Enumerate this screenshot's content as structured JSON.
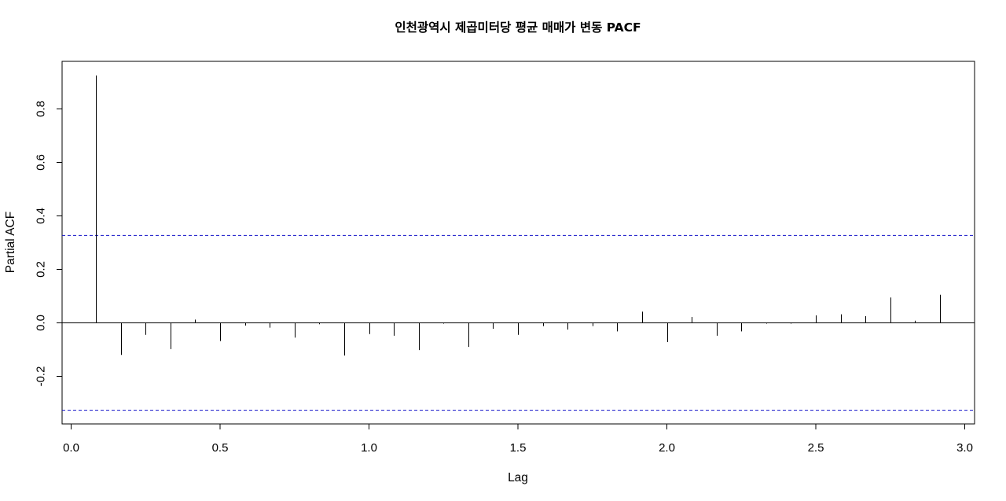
{
  "chart_data": {
    "type": "bar",
    "subtype": "pacf",
    "title": "인천광역시 제곱미터당 평균 매매가 변동 PACF",
    "xlabel": "Lag",
    "ylabel": "Partial ACF",
    "xlim": [
      0.0,
      3.0
    ],
    "ylim": [
      -0.33,
      0.93
    ],
    "x_ticks": [
      "0.0",
      "0.5",
      "1.0",
      "1.5",
      "2.0",
      "2.5",
      "3.0"
    ],
    "y_ticks": [
      "-0.2",
      "0.0",
      "0.2",
      "0.4",
      "0.6",
      "0.8"
    ],
    "confidence_bound": 0.327,
    "confidence_line_color": "#1010c8",
    "x": [
      0.0833,
      0.1667,
      0.25,
      0.3333,
      0.4167,
      0.5,
      0.5833,
      0.6667,
      0.75,
      0.8333,
      0.9167,
      1.0,
      1.0833,
      1.1667,
      1.25,
      1.3333,
      1.4167,
      1.5,
      1.5833,
      1.6667,
      1.75,
      1.8333,
      1.9167,
      2.0,
      2.0833,
      2.1667,
      2.25,
      2.3333,
      2.4167,
      2.5,
      2.5833,
      2.6667,
      2.75,
      2.8333,
      2.9167
    ],
    "values": [
      0.925,
      -0.12,
      -0.045,
      -0.098,
      0.012,
      -0.068,
      -0.01,
      -0.018,
      -0.055,
      -0.005,
      -0.122,
      -0.042,
      -0.048,
      -0.102,
      -0.003,
      -0.09,
      -0.022,
      -0.045,
      -0.012,
      -0.025,
      -0.012,
      -0.032,
      0.042,
      -0.072,
      0.022,
      -0.048,
      -0.032,
      -0.003,
      -0.003,
      0.028,
      0.032,
      0.025,
      0.095,
      0.008,
      0.105
    ]
  }
}
